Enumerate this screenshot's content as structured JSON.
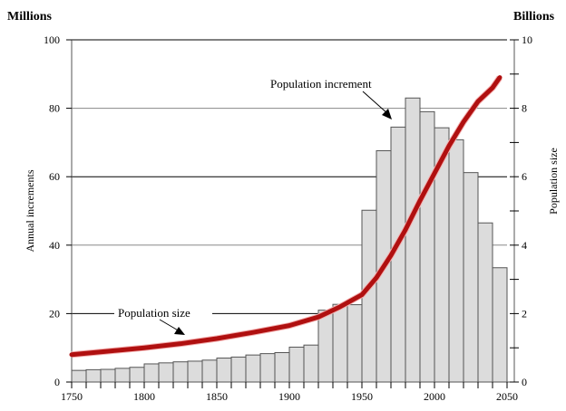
{
  "chart_data": {
    "type": "bar+line",
    "left_unit_label": "Millions",
    "right_unit_label": "Billions",
    "ylabel_left": "Annual increments",
    "ylabel_right": "Population size",
    "xlim": [
      1750,
      2050
    ],
    "ylim_left": [
      0,
      100
    ],
    "ylim_right": [
      0,
      10
    ],
    "x_ticks": [
      1750,
      1800,
      1850,
      1900,
      1950,
      2000,
      2050
    ],
    "y_ticks_left": [
      0,
      20,
      40,
      60,
      80,
      100
    ],
    "y_ticks_right": [
      0,
      2,
      4,
      6,
      8,
      10
    ],
    "grid": "horizontal",
    "bar_width_years": 10,
    "bar_color": "#dcdcdc",
    "line_color": "#b01010",
    "bars": {
      "name": "Population increment",
      "x": [
        1750,
        1760,
        1770,
        1780,
        1790,
        1800,
        1810,
        1820,
        1830,
        1840,
        1850,
        1860,
        1870,
        1880,
        1890,
        1900,
        1910,
        1920,
        1930,
        1940,
        1950,
        1960,
        1970,
        1980,
        1990,
        2000,
        2010,
        2020,
        2030,
        2040
      ],
      "values": [
        3.4,
        3.6,
        3.7,
        4.0,
        4.3,
        5.3,
        5.6,
        5.9,
        6.1,
        6.4,
        7.0,
        7.3,
        7.9,
        8.3,
        8.6,
        10.2,
        10.8,
        21.0,
        22.7,
        22.6,
        50.2,
        67.6,
        74.5,
        83.0,
        79.0,
        74.3,
        70.8,
        61.2,
        46.5,
        33.4
      ]
    },
    "line": {
      "name": "Population size",
      "x": [
        1750,
        1775,
        1800,
        1825,
        1850,
        1875,
        1900,
        1920,
        1935,
        1950,
        1960,
        1970,
        1980,
        1990,
        2000,
        2010,
        2020,
        2030,
        2040,
        2045
      ],
      "values": [
        0.8,
        0.9,
        1.0,
        1.12,
        1.27,
        1.45,
        1.65,
        1.9,
        2.2,
        2.55,
        3.05,
        3.7,
        4.45,
        5.3,
        6.1,
        6.9,
        7.6,
        8.2,
        8.6,
        8.9
      ]
    },
    "annotations": [
      "Population increment",
      "Population size"
    ]
  }
}
